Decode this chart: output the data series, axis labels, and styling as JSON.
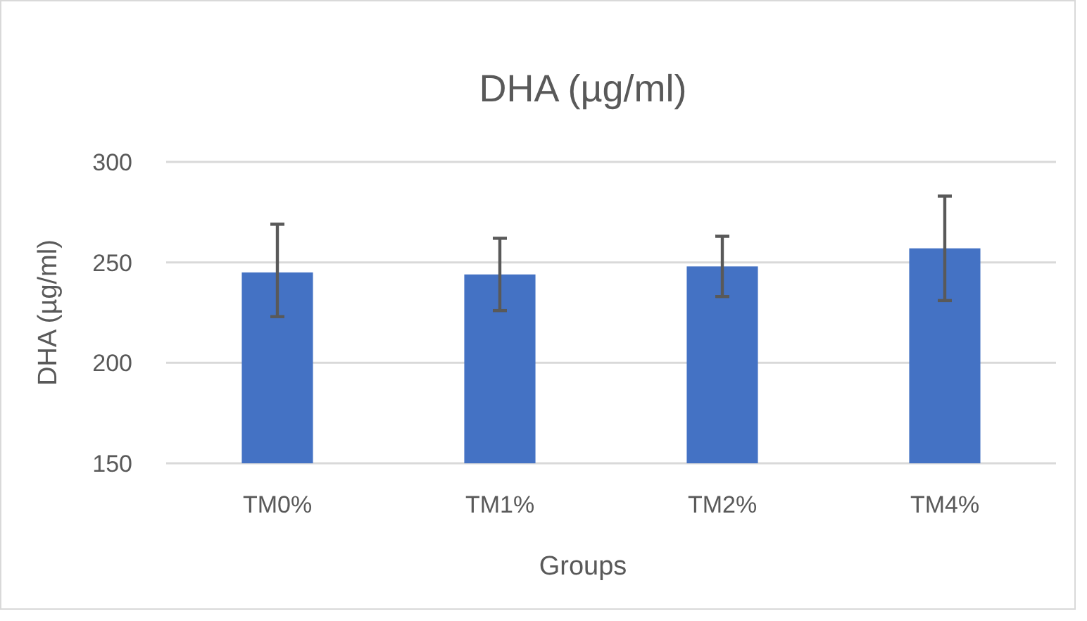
{
  "chart_data": {
    "type": "bar",
    "title": "DHA (µg/ml)",
    "xlabel": "Groups",
    "ylabel": "DHA (µg/ml)",
    "categories": [
      "TM0%",
      "TM1%",
      "TM2%",
      "TM4%"
    ],
    "values": [
      245,
      244,
      248,
      257
    ],
    "errors": [
      [
        223,
        269
      ],
      [
        226,
        262
      ],
      [
        233,
        263
      ],
      [
        231,
        283
      ]
    ],
    "color": "#4472c4",
    "ylim": [
      150,
      300
    ],
    "yticks": [
      150,
      200,
      250,
      300
    ],
    "grid": "y"
  }
}
